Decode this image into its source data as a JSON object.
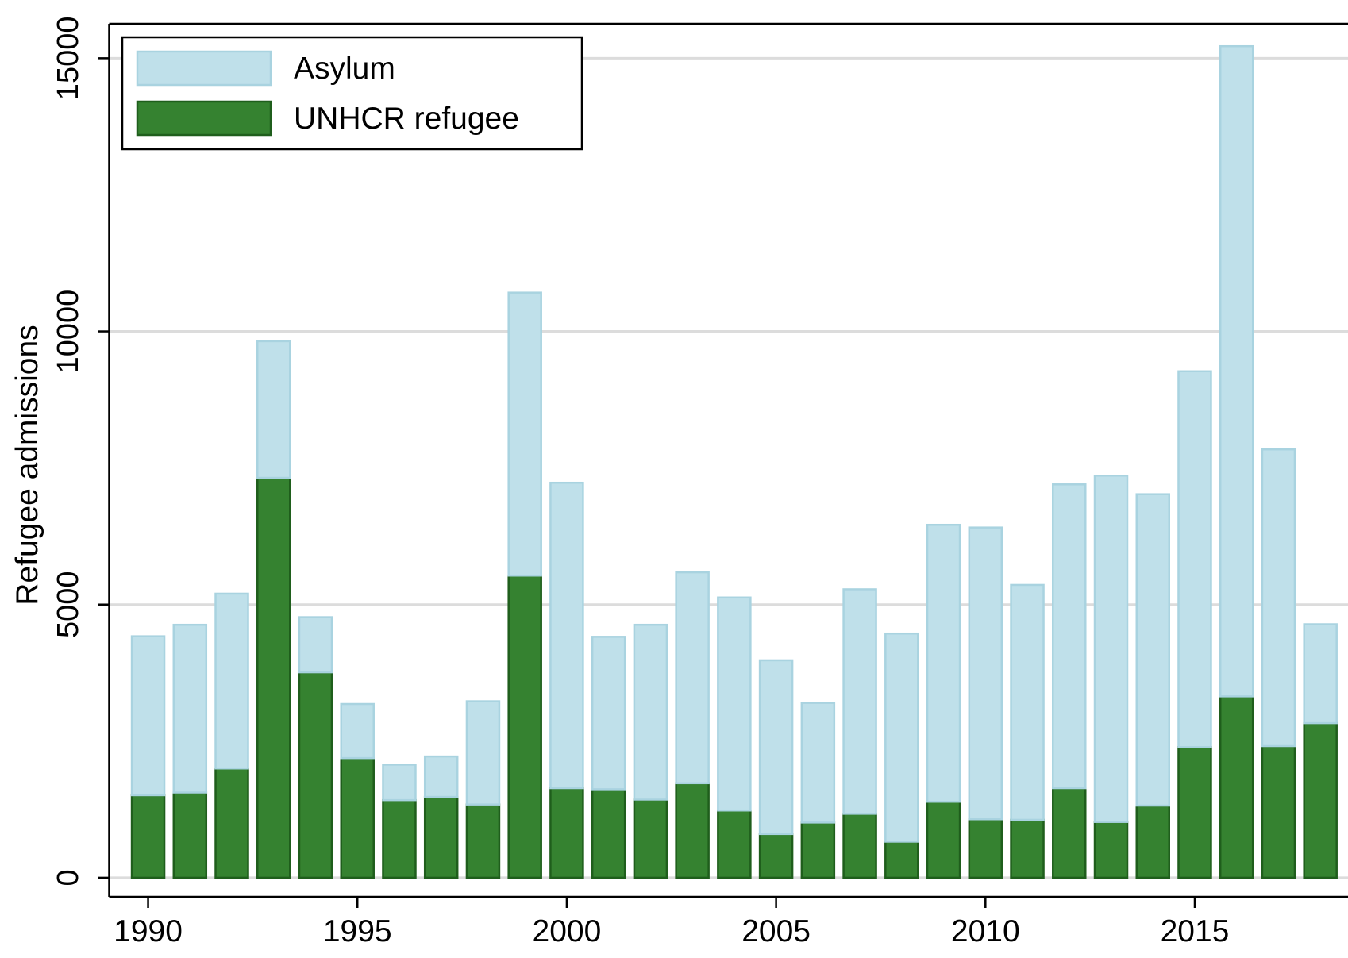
{
  "chart_data": {
    "type": "bar",
    "stacked": true,
    "y_label": "Refugee admissions",
    "x": [
      1990,
      1991,
      1992,
      1993,
      1994,
      1995,
      1996,
      1997,
      1998,
      1999,
      2000,
      2001,
      2002,
      2003,
      2004,
      2005,
      2006,
      2007,
      2008,
      2009,
      2010,
      2011,
      2012,
      2013,
      2014,
      2015,
      2016,
      2017,
      2018
    ],
    "series": [
      {
        "name": "Asylum",
        "color": "#bfe0ea",
        "values": [
          2910,
          3070,
          3200,
          2500,
          1010,
          990,
          650,
          740,
          1890,
          5180,
          5590,
          2790,
          3200,
          3860,
          3900,
          3180,
          2190,
          4110,
          3810,
          5070,
          5340,
          4300,
          5560,
          6340,
          5700,
          6880,
          11900,
          5430,
          1810
        ]
      },
      {
        "name": "UNHCR refugee",
        "color": "#358230",
        "values": [
          1510,
          1560,
          2000,
          7320,
          3760,
          2190,
          1420,
          1480,
          1340,
          5530,
          1640,
          1620,
          1430,
          1730,
          1230,
          800,
          1010,
          1170,
          660,
          1390,
          1070,
          1060,
          1640,
          1020,
          1320,
          2390,
          3320,
          2410,
          2830
        ]
      }
    ],
    "xlim": [
      1989.07,
      2018.66
    ],
    "xticks": [
      1990,
      1995,
      2000,
      2005,
      2010,
      2015
    ],
    "ylim": [
      -350,
      15630
    ],
    "yticks": [
      0,
      5000,
      10000,
      15000
    ],
    "grid": true,
    "legend": "top-left"
  }
}
